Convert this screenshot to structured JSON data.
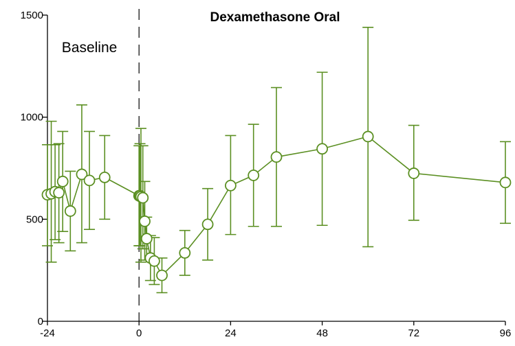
{
  "chart_data": {
    "type": "line",
    "title": "Dexamethasone Oral",
    "xlabel": "",
    "ylabel": "",
    "xlim": [
      -24,
      96
    ],
    "ylim": [
      0,
      1500
    ],
    "x_ticks": [
      -24,
      0,
      24,
      48,
      72,
      96
    ],
    "y_ticks": [
      0,
      500,
      1000,
      1500
    ],
    "x_tick_labels": [
      "-24",
      "0",
      "24",
      "48",
      "72",
      "96"
    ],
    "y_tick_labels": [
      "0",
      "500",
      "1000",
      "1500"
    ],
    "grid": false,
    "legend": "none",
    "annotations": [
      {
        "text": "Baseline",
        "x": -13
      }
    ],
    "reference_line": {
      "x": 0,
      "style": "dashed"
    },
    "series": [
      {
        "color": "#5b8f22",
        "marker": "open-circle",
        "points": [
          {
            "x": -24,
            "y": 620,
            "lo": 370,
            "hi": 865
          },
          {
            "x": -23,
            "y": 625,
            "lo": 290,
            "hi": 980
          },
          {
            "x": -22,
            "y": 635,
            "lo": 400,
            "hi": 865
          },
          {
            "x": -21,
            "y": 630,
            "lo": 385,
            "hi": 870
          },
          {
            "x": -20,
            "y": 685,
            "lo": 440,
            "hi": 930
          },
          {
            "x": -18,
            "y": 540,
            "lo": 345,
            "hi": 735
          },
          {
            "x": -15,
            "y": 720,
            "lo": 385,
            "hi": 1060
          },
          {
            "x": -13,
            "y": 690,
            "lo": 450,
            "hi": 930
          },
          {
            "x": -9,
            "y": 705,
            "lo": 500,
            "hi": 910
          },
          {
            "x": 0,
            "y": 615,
            "lo": 370,
            "hi": 860
          },
          {
            "x": 0.25,
            "y": 615,
            "lo": 370,
            "hi": 870
          },
          {
            "x": 0.5,
            "y": 610,
            "lo": 290,
            "hi": 945
          },
          {
            "x": 1,
            "y": 605,
            "lo": 355,
            "hi": 860
          },
          {
            "x": 1.5,
            "y": 490,
            "lo": 300,
            "hi": 685
          },
          {
            "x": 2,
            "y": 405,
            "lo": 300,
            "hi": 510
          },
          {
            "x": 3,
            "y": 310,
            "lo": 200,
            "hi": 420
          },
          {
            "x": 4,
            "y": 295,
            "lo": 180,
            "hi": 410
          },
          {
            "x": 6,
            "y": 225,
            "lo": 140,
            "hi": 310
          },
          {
            "x": 12,
            "y": 335,
            "lo": 225,
            "hi": 445
          },
          {
            "x": 18,
            "y": 475,
            "lo": 300,
            "hi": 650
          },
          {
            "x": 24,
            "y": 665,
            "lo": 425,
            "hi": 910
          },
          {
            "x": 30,
            "y": 715,
            "lo": 465,
            "hi": 965
          },
          {
            "x": 36,
            "y": 805,
            "lo": 465,
            "hi": 1145
          },
          {
            "x": 48,
            "y": 845,
            "lo": 470,
            "hi": 1220
          },
          {
            "x": 60,
            "y": 905,
            "lo": 365,
            "hi": 1440
          },
          {
            "x": 72,
            "y": 725,
            "lo": 495,
            "hi": 960
          },
          {
            "x": 96,
            "y": 680,
            "lo": 480,
            "hi": 880
          }
        ]
      }
    ]
  }
}
